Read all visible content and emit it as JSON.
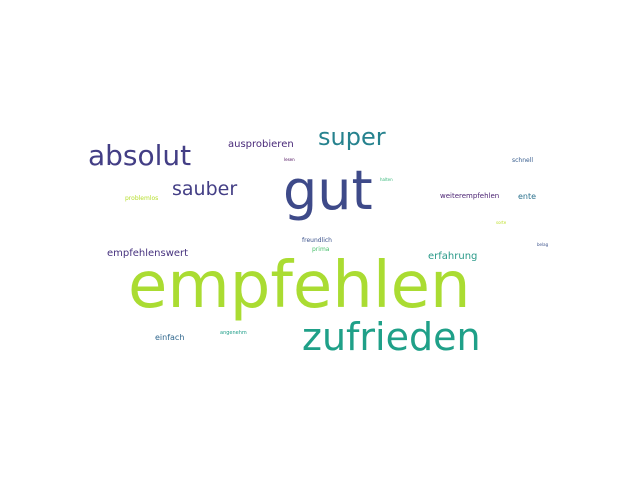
{
  "words": {
    "empfehlen": {
      "text": "empfehlen",
      "color": "#aadc32"
    },
    "gut": {
      "text": "gut",
      "color": "#3e4a89"
    },
    "zufrieden": {
      "text": "zufrieden",
      "color": "#1fa088"
    },
    "absolut": {
      "text": "absolut",
      "color": "#433e85"
    },
    "super": {
      "text": "super",
      "color": "#26828e"
    },
    "sauber": {
      "text": "sauber",
      "color": "#433e85"
    },
    "ausprobieren": {
      "text": "ausprobieren",
      "color": "#482878"
    },
    "empfehlenswert": {
      "text": "empfehlenswert",
      "color": "#46327e"
    },
    "erfahrung": {
      "text": "erfahrung",
      "color": "#2a9a89"
    },
    "einfach": {
      "text": "einfach",
      "color": "#31688e"
    },
    "weiterempfehlen": {
      "text": "weiterempfehlen",
      "color": "#481f70"
    },
    "ente": {
      "text": "ente",
      "color": "#2c728e"
    },
    "schnell": {
      "text": "schnell",
      "color": "#365c8d"
    },
    "freundlich": {
      "text": "freundlich",
      "color": "#3b528b"
    },
    "prima": {
      "text": "prima",
      "color": "#4ac16d"
    },
    "problemlos": {
      "text": "problemlos",
      "color": "#b5de2b"
    },
    "angenehm": {
      "text": "angenehm",
      "color": "#1f9e89"
    },
    "lesen": {
      "text": "lesen",
      "color": "#440154"
    },
    "halten": {
      "text": "halten",
      "color": "#35b779"
    },
    "sorte": {
      "text": "sorte",
      "color": "#bddf26"
    },
    "belag": {
      "text": "belag",
      "color": "#3b528b"
    }
  }
}
